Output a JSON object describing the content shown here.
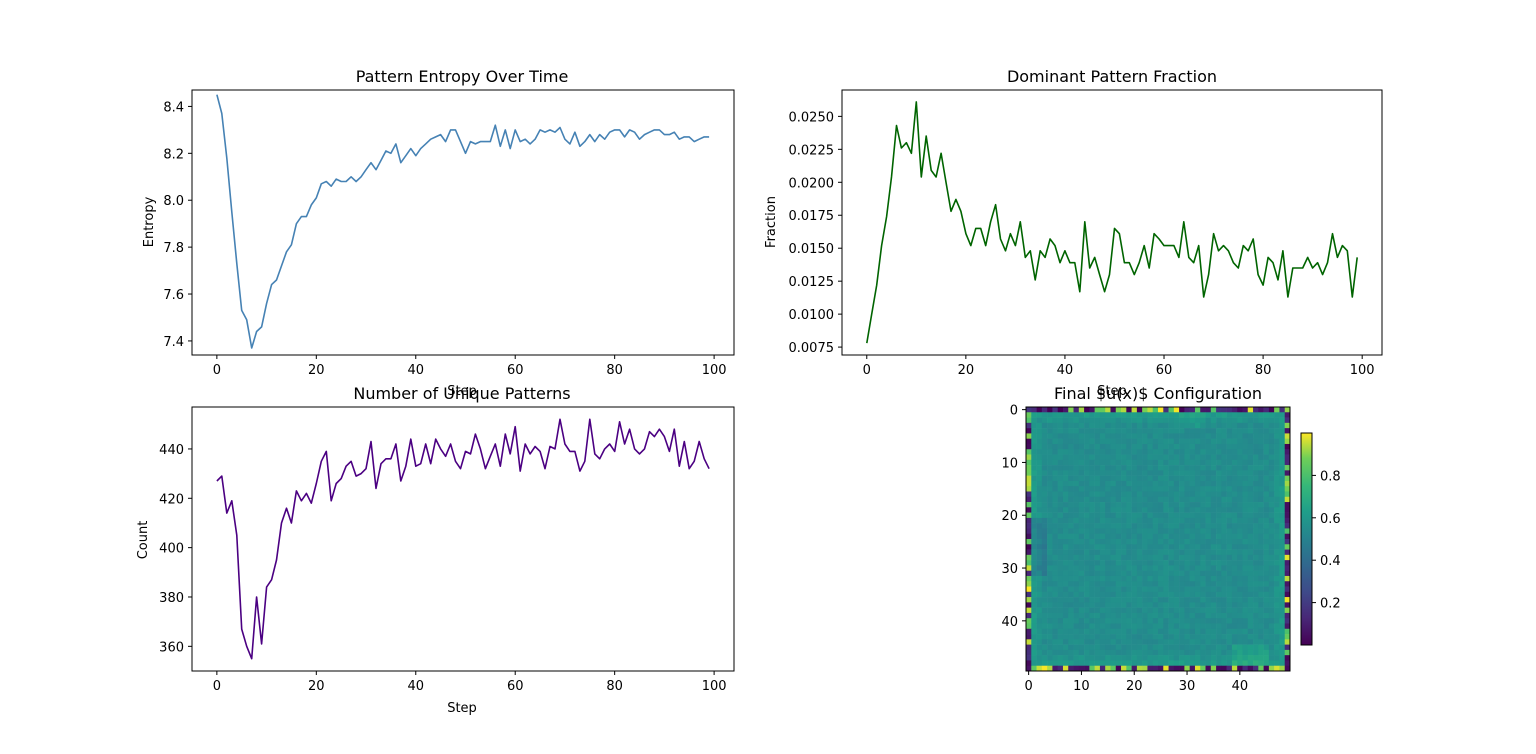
{
  "chart_data": [
    {
      "type": "line",
      "title": "Pattern Entropy Over Time",
      "xlabel": "Step",
      "ylabel": "Entropy",
      "xlim": [
        -5,
        104
      ],
      "ylim": [
        7.34,
        8.47
      ],
      "xticks": [
        0,
        20,
        40,
        60,
        80,
        100
      ],
      "yticks": [
        7.4,
        7.6,
        7.8,
        8.0,
        8.2,
        8.4
      ],
      "ytick_labels": [
        "7.4",
        "7.6",
        "7.8",
        "8.0",
        "8.2",
        "8.4"
      ],
      "grid": false,
      "color": "#4682b4",
      "x_start": 0,
      "values": [
        8.45,
        8.37,
        8.18,
        7.95,
        7.73,
        7.53,
        7.49,
        7.37,
        7.44,
        7.46,
        7.56,
        7.64,
        7.66,
        7.72,
        7.78,
        7.81,
        7.9,
        7.93,
        7.93,
        7.98,
        8.01,
        8.07,
        8.08,
        8.06,
        8.09,
        8.08,
        8.08,
        8.1,
        8.08,
        8.1,
        8.13,
        8.16,
        8.13,
        8.17,
        8.21,
        8.2,
        8.24,
        8.16,
        8.19,
        8.22,
        8.19,
        8.22,
        8.24,
        8.26,
        8.27,
        8.28,
        8.25,
        8.3,
        8.3,
        8.25,
        8.2,
        8.25,
        8.24,
        8.25,
        8.25,
        8.25,
        8.32,
        8.23,
        8.3,
        8.22,
        8.3,
        8.25,
        8.26,
        8.24,
        8.26,
        8.3,
        8.29,
        8.3,
        8.29,
        8.31,
        8.26,
        8.24,
        8.29,
        8.23,
        8.25,
        8.28,
        8.25,
        8.28,
        8.26,
        8.29,
        8.3,
        8.3,
        8.27,
        8.3,
        8.29,
        8.26,
        8.28,
        8.29,
        8.3,
        8.3,
        8.28,
        8.28,
        8.29,
        8.26,
        8.27,
        8.27,
        8.25,
        8.26,
        8.27,
        8.27
      ]
    },
    {
      "type": "line",
      "title": "Dominant Pattern Fraction",
      "xlabel": "Step",
      "ylabel": "Fraction",
      "xlim": [
        -5,
        104
      ],
      "ylim": [
        0.0069,
        0.027
      ],
      "xticks": [
        0,
        20,
        40,
        60,
        80,
        100
      ],
      "yticks": [
        0.0075,
        0.01,
        0.0125,
        0.015,
        0.0175,
        0.02,
        0.0225,
        0.025
      ],
      "ytick_labels": [
        "0.0075",
        "0.0100",
        "0.0125",
        "0.0150",
        "0.0175",
        "0.0200",
        "0.0225",
        "0.0250"
      ],
      "grid": false,
      "color": "#006400",
      "x_start": 0,
      "values": [
        0.0078,
        0.01,
        0.0122,
        0.0152,
        0.0174,
        0.0204,
        0.0243,
        0.0226,
        0.023,
        0.0222,
        0.0261,
        0.0204,
        0.0235,
        0.0209,
        0.0204,
        0.0222,
        0.02,
        0.0178,
        0.0187,
        0.0178,
        0.0161,
        0.0152,
        0.0165,
        0.0165,
        0.0152,
        0.017,
        0.0183,
        0.0157,
        0.0148,
        0.0161,
        0.0152,
        0.017,
        0.0143,
        0.0148,
        0.0126,
        0.0148,
        0.0143,
        0.0157,
        0.0152,
        0.0139,
        0.0148,
        0.0139,
        0.0139,
        0.0117,
        0.017,
        0.0135,
        0.0143,
        0.013,
        0.0117,
        0.013,
        0.0165,
        0.0161,
        0.0139,
        0.0139,
        0.013,
        0.0139,
        0.0152,
        0.0135,
        0.0161,
        0.0157,
        0.0152,
        0.0152,
        0.0152,
        0.0143,
        0.017,
        0.0143,
        0.0139,
        0.0152,
        0.0113,
        0.013,
        0.0161,
        0.0148,
        0.0152,
        0.0148,
        0.0139,
        0.0135,
        0.0152,
        0.0148,
        0.0157,
        0.013,
        0.0122,
        0.0143,
        0.0139,
        0.0126,
        0.0148,
        0.0113,
        0.0135,
        0.0135,
        0.0135,
        0.0143,
        0.0135,
        0.0139,
        0.013,
        0.0139,
        0.0161,
        0.0143,
        0.0152,
        0.0148,
        0.0113,
        0.0143
      ]
    },
    {
      "type": "line",
      "title": "Number of Unique Patterns",
      "xlabel": "Step",
      "ylabel": "Count",
      "xlim": [
        -5,
        104
      ],
      "ylim": [
        350,
        457
      ],
      "xticks": [
        0,
        20,
        40,
        60,
        80,
        100
      ],
      "yticks": [
        360,
        380,
        400,
        420,
        440
      ],
      "ytick_labels": [
        "360",
        "380",
        "400",
        "420",
        "440"
      ],
      "grid": false,
      "color": "#4b0082",
      "x_start": 0,
      "values": [
        427,
        429,
        414,
        419,
        405,
        367,
        360,
        355,
        380,
        361,
        384,
        387,
        395,
        410,
        416,
        410,
        423,
        419,
        422,
        418,
        426,
        435,
        439,
        419,
        426,
        428,
        433,
        435,
        429,
        430,
        432,
        443,
        424,
        434,
        436,
        436,
        442,
        427,
        433,
        444,
        433,
        434,
        442,
        434,
        444,
        440,
        437,
        442,
        435,
        432,
        439,
        438,
        446,
        440,
        432,
        437,
        442,
        433,
        446,
        438,
        449,
        431,
        442,
        438,
        441,
        439,
        432,
        441,
        440,
        452,
        442,
        439,
        439,
        431,
        435,
        452,
        438,
        436,
        440,
        442,
        439,
        451,
        442,
        448,
        440,
        438,
        440,
        447,
        445,
        448,
        445,
        439,
        448,
        433,
        443,
        432,
        435,
        443,
        436,
        432
      ]
    },
    {
      "type": "heatmap",
      "title": "Final $u(x)$ Configuration",
      "shape": [
        50,
        50
      ],
      "xticks": [
        0,
        10,
        20,
        30,
        40
      ],
      "yticks": [
        0,
        10,
        20,
        30,
        40
      ],
      "colormap": "viridis",
      "colorbar": {
        "range": [
          0.0,
          1.0
        ],
        "ticks": [
          0.2,
          0.4,
          0.6,
          0.8
        ],
        "tick_labels": [
          "0.2",
          "0.4",
          "0.6",
          "0.8"
        ]
      }
    }
  ]
}
